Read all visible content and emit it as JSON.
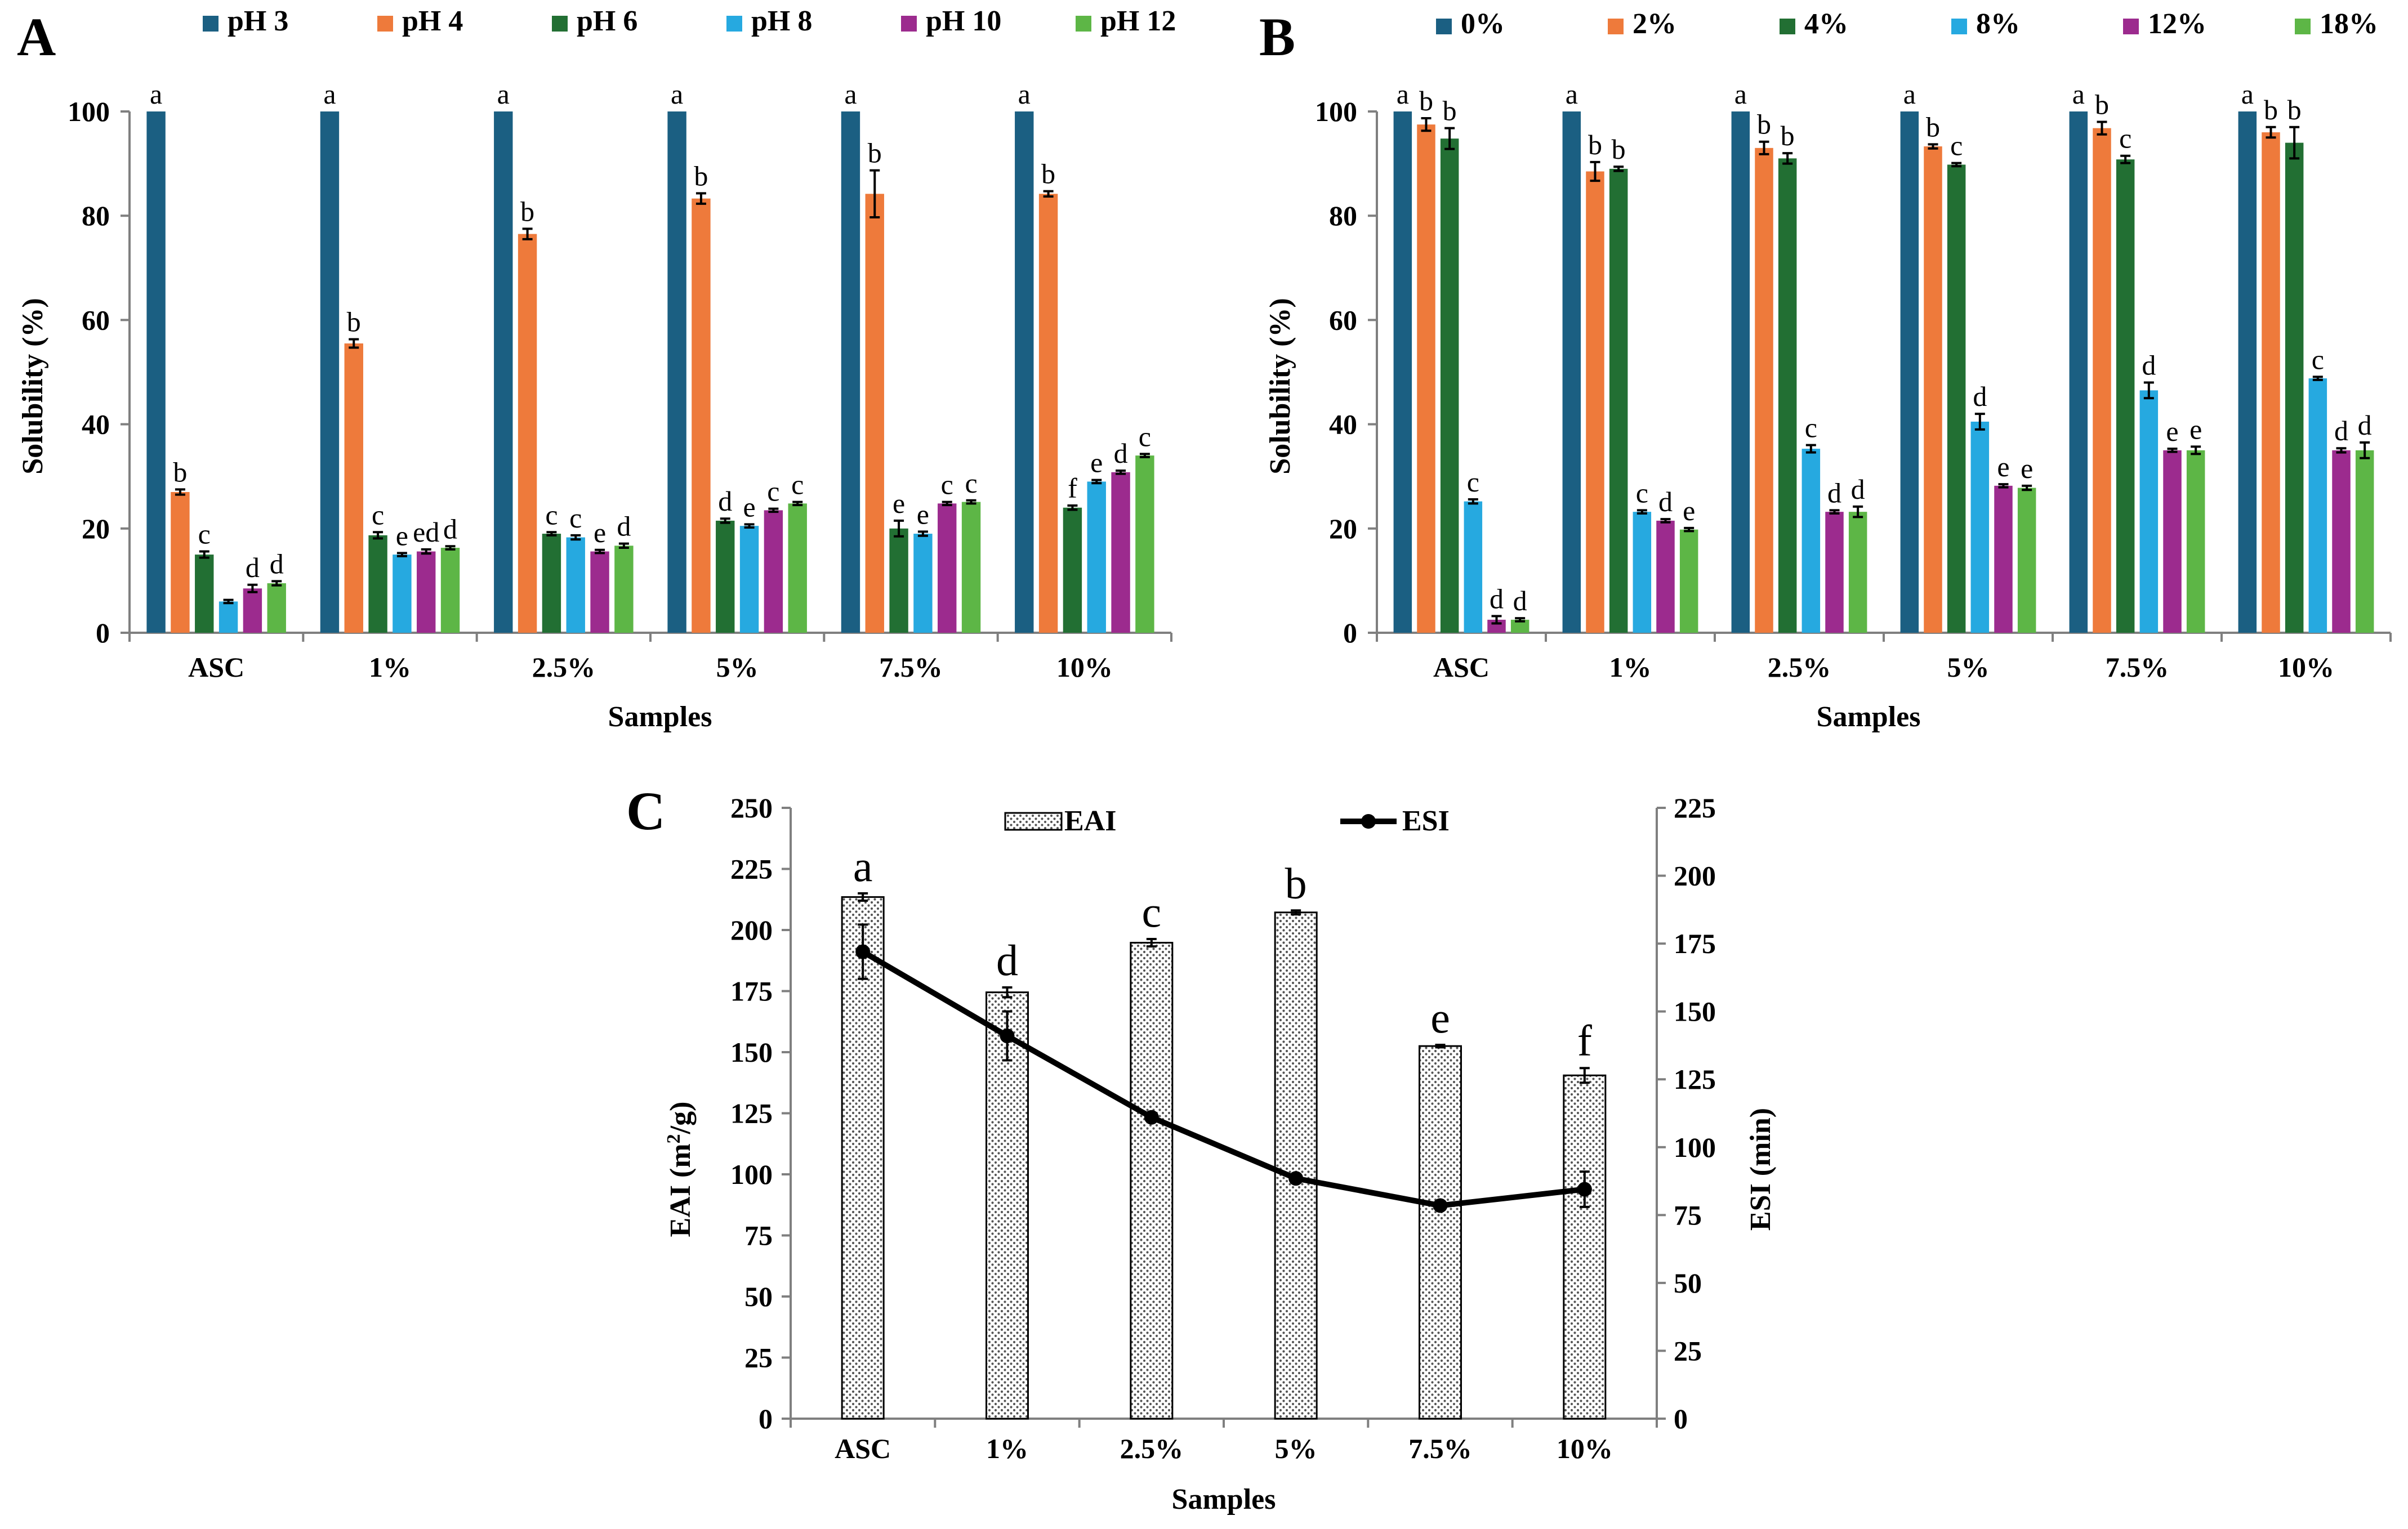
{
  "chart_data": [
    {
      "panel": "A",
      "type": "bar",
      "title": "",
      "xlabel": "Samples",
      "ylabel": "Solubility (%)",
      "ylim": [
        0,
        100
      ],
      "yticks": [
        "0",
        "20",
        "40",
        "60",
        "80",
        "100"
      ],
      "legend_position": "top",
      "categories": [
        "ASC",
        "1%",
        "2.5%",
        "5%",
        "7.5%",
        "10%"
      ],
      "series": [
        {
          "name": "pH 3",
          "color": "#1b5f82",
          "values": [
            100,
            100,
            100,
            100,
            100,
            100
          ],
          "errors": [
            0,
            0,
            0,
            0,
            0,
            0
          ],
          "letters": [
            "a",
            "a",
            "a",
            "a",
            "a",
            "a"
          ]
        },
        {
          "name": "pH 4",
          "color": "#ee7a3b",
          "values": [
            27,
            55.5,
            76.5,
            83.3,
            84.2,
            84.2
          ],
          "errors": [
            0.5,
            0.8,
            1.0,
            1.0,
            4.5,
            0.5
          ],
          "letters": [
            "b",
            "b",
            "b",
            "b",
            "b",
            "b"
          ]
        },
        {
          "name": "pH 6",
          "color": "#226f33",
          "values": [
            15,
            18.7,
            19,
            21.5,
            20,
            24
          ],
          "errors": [
            0.6,
            0.6,
            0.3,
            0.4,
            1.5,
            0.4
          ],
          "letters": [
            "c",
            "c",
            "c",
            "d",
            "e",
            "f"
          ]
        },
        {
          "name": "pH 8",
          "color": "#26a9e0",
          "values": [
            6,
            15,
            18.3,
            20.5,
            19,
            29
          ],
          "errors": [
            0.3,
            0.3,
            0.4,
            0.3,
            0.4,
            0.3
          ],
          "letters": [
            "",
            "e",
            "c",
            "e",
            "e",
            "e"
          ]
        },
        {
          "name": "pH 10",
          "color": "#9c2b8e",
          "values": [
            8.5,
            15.6,
            15.6,
            23.5,
            24.8,
            30.8
          ],
          "errors": [
            0.7,
            0.4,
            0.3,
            0.3,
            0.3,
            0.3
          ],
          "letters": [
            "d",
            "ed",
            "e",
            "c",
            "c",
            "d"
          ]
        },
        {
          "name": "pH 12",
          "color": "#5db646",
          "values": [
            9.5,
            16.3,
            16.7,
            24.8,
            25.1,
            34
          ],
          "errors": [
            0.4,
            0.3,
            0.4,
            0.3,
            0.3,
            0.3
          ],
          "letters": [
            "d",
            "d",
            "d",
            "c",
            "c",
            "c"
          ]
        }
      ]
    },
    {
      "panel": "B",
      "type": "bar",
      "title": "",
      "xlabel": "Samples",
      "ylabel": "Solubility (%)",
      "ylim": [
        0,
        100
      ],
      "yticks": [
        "0",
        "20",
        "40",
        "60",
        "80",
        "100"
      ],
      "legend_position": "top",
      "categories": [
        "ASC",
        "1%",
        "2.5%",
        "5%",
        "7.5%",
        "10%"
      ],
      "series": [
        {
          "name": "0%",
          "color": "#1b5f82",
          "values": [
            100,
            100,
            100,
            100,
            100,
            100
          ],
          "errors": [
            0,
            0,
            0,
            0,
            0,
            0
          ],
          "letters": [
            "a",
            "a",
            "a",
            "a",
            "a",
            "a"
          ]
        },
        {
          "name": "2%",
          "color": "#ee7a3b",
          "values": [
            97.5,
            88.5,
            93,
            93.3,
            96.8,
            96
          ],
          "errors": [
            1.2,
            1.8,
            1.2,
            0.4,
            1.2,
            1.0
          ],
          "letters": [
            "b",
            "b",
            "b",
            "b",
            "b",
            "b"
          ]
        },
        {
          "name": "4%",
          "color": "#226f33",
          "values": [
            94.8,
            89,
            91,
            89.8,
            90.8,
            94
          ],
          "errors": [
            2.0,
            0.4,
            1.0,
            0.3,
            0.7,
            3.0
          ],
          "letters": [
            "b",
            "b",
            "b",
            "c",
            "c",
            "b"
          ]
        },
        {
          "name": "8%",
          "color": "#26a9e0",
          "values": [
            25.2,
            23.2,
            35.3,
            40.5,
            46.5,
            48.8
          ],
          "errors": [
            0.4,
            0.3,
            0.7,
            1.5,
            1.5,
            0.3
          ],
          "letters": [
            "c",
            "c",
            "c",
            "d",
            "d",
            "c"
          ]
        },
        {
          "name": "12%",
          "color": "#9c2b8e",
          "values": [
            2.5,
            21.5,
            23.2,
            28.2,
            35,
            35
          ],
          "errors": [
            0.7,
            0.3,
            0.3,
            0.3,
            0.3,
            0.4
          ],
          "letters": [
            "d",
            "d",
            "d",
            "e",
            "e",
            "d"
          ]
        },
        {
          "name": "18%",
          "color": "#5db646",
          "values": [
            2.5,
            19.8,
            23.2,
            27.8,
            35,
            35
          ],
          "errors": [
            0.3,
            0.3,
            1.0,
            0.4,
            0.7,
            1.5
          ],
          "letters": [
            "d",
            "e",
            "d",
            "e",
            "e",
            "d"
          ]
        }
      ]
    },
    {
      "panel": "C",
      "type": "bar",
      "title": "",
      "xlabel": "Samples",
      "ylabel": "EAI (m²/g)",
      "ylabel_secondary": "ESI (min)",
      "ylim": [
        0,
        250
      ],
      "ylim_secondary": [
        0,
        225
      ],
      "yticks": [
        "0",
        "25",
        "50",
        "75",
        "100",
        "125",
        "150",
        "175",
        "200",
        "225",
        "250"
      ],
      "yticks_secondary": [
        "0",
        "25",
        "50",
        "75",
        "100",
        "125",
        "150",
        "175",
        "200",
        "225"
      ],
      "legend_position": "top",
      "categories": [
        "ASC",
        "1%",
        "2.5%",
        "5%",
        "7.5%",
        "10%"
      ],
      "series": [
        {
          "name": "EAI",
          "kind": "bar",
          "values": [
            213.5,
            174.5,
            194.8,
            207.2,
            152.5,
            140.5
          ],
          "errors": [
            1.5,
            2.0,
            1.5,
            0.8,
            0.5,
            3.0
          ],
          "letters": [
            "a",
            "d",
            "c",
            "b",
            "e",
            "f"
          ]
        },
        {
          "name": "ESI",
          "kind": "line",
          "axis": "secondary",
          "values": [
            172,
            141,
            111,
            88.5,
            78.5,
            84.5
          ],
          "errors": [
            10,
            9,
            0.8,
            0.8,
            0.8,
            6.5
          ]
        }
      ]
    }
  ]
}
